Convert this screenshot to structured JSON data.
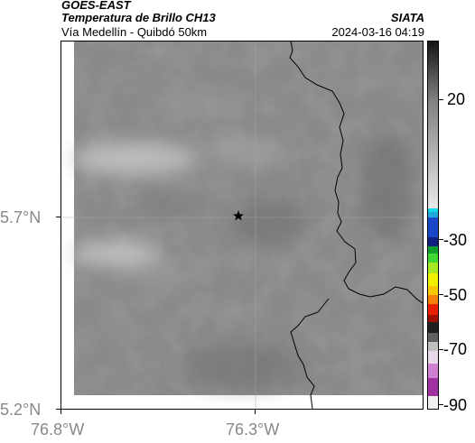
{
  "header": {
    "satellite": "GOES-EAST",
    "product": "Temperatura de Brillo CH13",
    "region": "Vía Medellín - Quibdó 50km",
    "source": "SIATA",
    "datetime": "2024-03-16 04:19"
  },
  "axes": {
    "lat_labels": [
      "5.7°N",
      "5.2°N"
    ],
    "lon_labels": [
      "76.8°W",
      "76.3°W"
    ]
  },
  "colorbar": {
    "labels": [
      "20",
      "-30",
      "-50",
      "-70",
      "-90"
    ]
  },
  "marker": {
    "symbol": "star"
  },
  "colors": {
    "map_gray": "#8a8a8a",
    "coastline": "#000000",
    "axis_label": "#888888"
  }
}
